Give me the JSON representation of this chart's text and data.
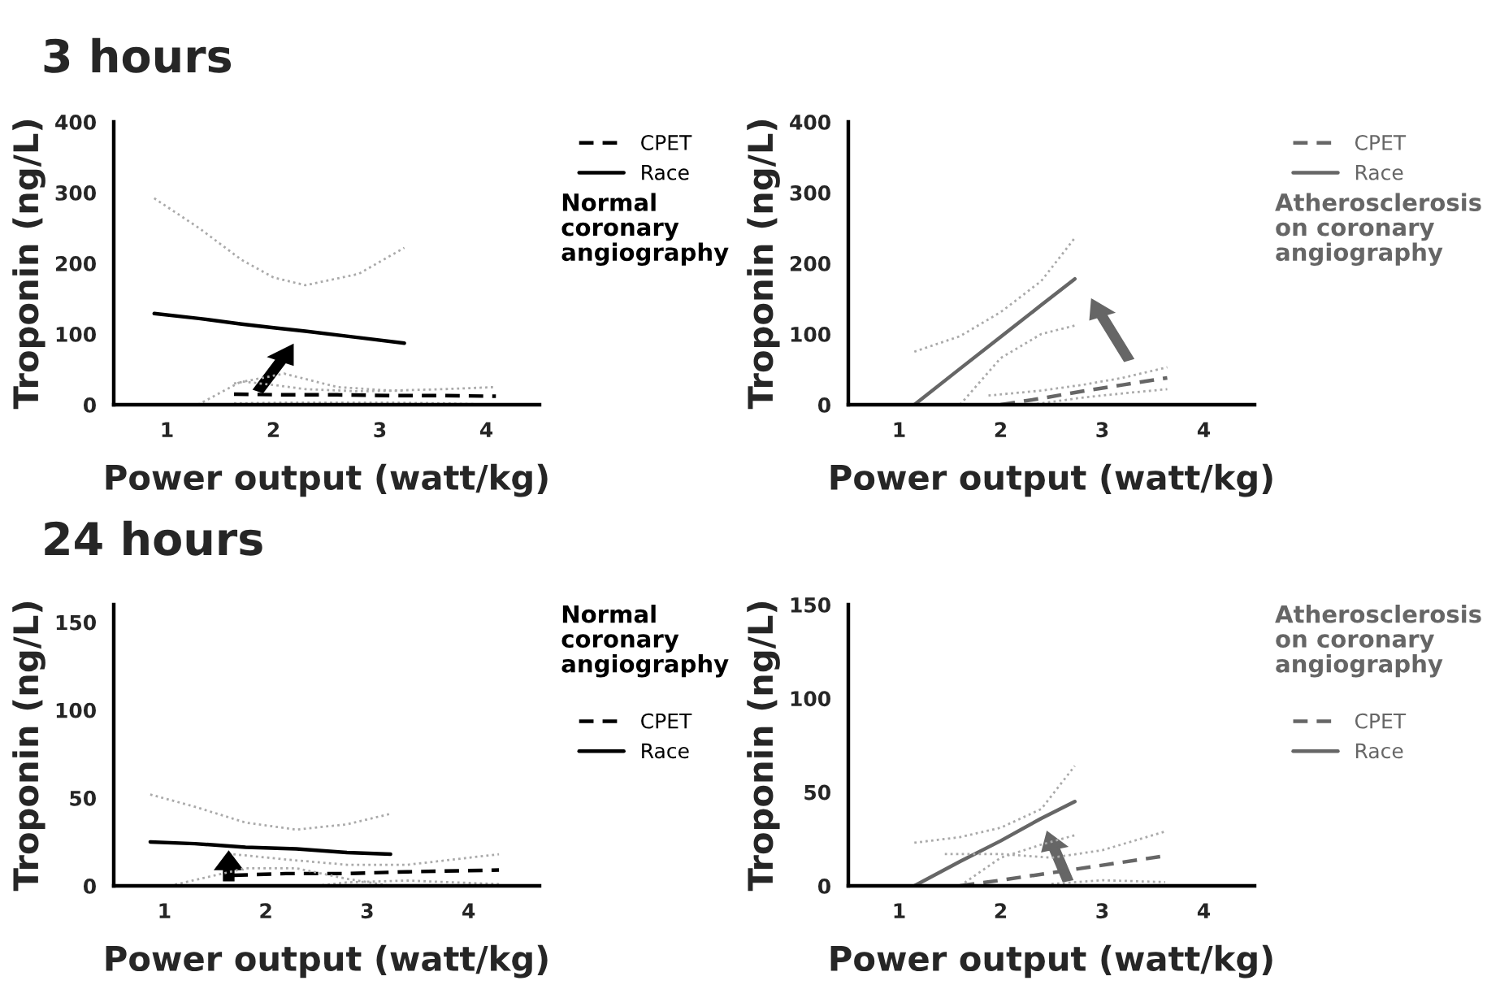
{
  "chart_data": [
    {
      "type": "line",
      "title": "3 hours",
      "xlabel": "Power output (watt/kg)",
      "ylabel": "Troponin (ng/L)",
      "annotations": [
        "Normal\ncoronary\nangiography"
      ],
      "xlim": [
        0.5,
        4.5
      ],
      "xticks": [
        1,
        2,
        3,
        4
      ],
      "ylim": [
        0,
        400
      ],
      "yticks": [
        0,
        100,
        200,
        300,
        400
      ],
      "legend": "top right",
      "series": [
        {
          "name": "CPET",
          "color": "#000000",
          "line_style": "dashed",
          "x": [
            1.63,
            2.1,
            2.6,
            3.1,
            3.6,
            4.09
          ],
          "values": [
            15,
            14,
            14,
            13,
            13,
            12
          ]
        },
        {
          "name": "Race",
          "color": "#000000",
          "line_style": "solid",
          "x": [
            0.88,
            1.3,
            1.7,
            2.0,
            2.3,
            2.8,
            3.23
          ],
          "values": [
            129,
            122,
            114,
            109,
            104,
            95,
            87
          ]
        },
        {
          "color": "#aaaaaa",
          "line_style": "dotted",
          "x": [
            0.88,
            1.3,
            1.7,
            2.0,
            2.3,
            2.8,
            3.23
          ],
          "values": [
            292,
            250,
            205,
            180,
            169,
            185,
            222
          ]
        },
        {
          "color": "#aaaaaa",
          "line_style": "dotted",
          "x": [
            1.29,
            1.7,
            2.0,
            2.3,
            2.8,
            3.23
          ],
          "values": [
            0,
            33,
            28,
            22,
            19,
            20
          ]
        },
        {
          "color": "#aaaaaa",
          "line_style": "dotted",
          "x": [
            1.63,
            2.1,
            2.6,
            3.1,
            3.6,
            4.09
          ],
          "values": [
            30,
            44,
            25,
            20,
            22,
            25
          ]
        },
        {
          "color": "#aaaaaa",
          "line_style": "dotted",
          "x": [
            1.63,
            2.1,
            2.6,
            3.1,
            3.6,
            4.09
          ],
          "values": [
            2,
            3,
            3,
            3,
            2,
            0
          ]
        }
      ]
    },
    {
      "type": "line",
      "xlabel": "Power output (watt/kg)",
      "ylabel": "Troponin (ng/L)",
      "annotations": [
        "Atherosclerosis\non coronary\nangiography"
      ],
      "xlim": [
        0.5,
        4.5
      ],
      "xticks": [
        1,
        2,
        3,
        4
      ],
      "ylim": [
        0,
        400
      ],
      "yticks": [
        0,
        100,
        200,
        300,
        400
      ],
      "legend": "top right",
      "series": [
        {
          "name": "CPET",
          "color": "#666666",
          "line_style": "dashed",
          "x": [
            2.0,
            2.4,
            2.8,
            3.2,
            3.64
          ],
          "values": [
            0,
            9,
            19,
            28,
            38
          ]
        },
        {
          "name": "Race",
          "color": "#666666",
          "line_style": "solid",
          "x": [
            1.15,
            1.6,
            2.0,
            2.4,
            2.73
          ],
          "values": [
            0,
            51,
            96,
            141,
            178
          ]
        },
        {
          "color": "#aaaaaa",
          "line_style": "dotted",
          "x": [
            1.15,
            1.6,
            2.0,
            2.4,
            2.73
          ],
          "values": [
            75,
            97,
            131,
            175,
            236
          ]
        },
        {
          "color": "#aaaaaa",
          "line_style": "dotted",
          "x": [
            1.6,
            2.0,
            2.4,
            2.73
          ],
          "values": [
            0,
            66,
            100,
            112
          ]
        },
        {
          "color": "#aaaaaa",
          "line_style": "dotted",
          "x": [
            1.88,
            2.4,
            2.8,
            3.2,
            3.64
          ],
          "values": [
            13,
            20,
            28,
            38,
            53
          ]
        },
        {
          "color": "#aaaaaa",
          "line_style": "dotted",
          "x": [
            2.3,
            2.8,
            3.2,
            3.64
          ],
          "values": [
            0,
            10,
            16,
            22
          ]
        }
      ]
    },
    {
      "type": "line",
      "title": "24 hours",
      "xlabel": "Power output (watt/kg)",
      "ylabel": "Troponin (ng/L)",
      "annotations": [
        "Normal\ncoronary\nangiography"
      ],
      "xlim": [
        0.5,
        4.7
      ],
      "xticks": [
        1,
        2,
        3,
        4
      ],
      "ylim": [
        0,
        160
      ],
      "yticks": [
        0,
        50,
        100,
        150
      ],
      "legend": "right",
      "series": [
        {
          "name": "CPET",
          "color": "#000000",
          "line_style": "dashed",
          "x": [
            1.68,
            2.2,
            2.8,
            3.4,
            4.3
          ],
          "values": [
            6,
            7,
            7,
            8,
            9
          ]
        },
        {
          "name": "Race",
          "color": "#000000",
          "line_style": "solid",
          "x": [
            0.86,
            1.3,
            1.8,
            2.3,
            2.8,
            3.23
          ],
          "values": [
            25,
            24,
            22,
            21,
            19,
            18
          ]
        },
        {
          "color": "#aaaaaa",
          "line_style": "dotted",
          "x": [
            0.86,
            1.3,
            1.8,
            2.3,
            2.8,
            3.23
          ],
          "values": [
            52,
            45,
            36,
            32,
            35,
            41
          ]
        },
        {
          "color": "#aaaaaa",
          "line_style": "dotted",
          "x": [
            1.05,
            1.8,
            2.3,
            2.8,
            3.23
          ],
          "values": [
            0,
            10,
            10,
            4,
            0
          ]
        },
        {
          "color": "#aaaaaa",
          "line_style": "dotted",
          "x": [
            1.68,
            2.2,
            2.8,
            3.4,
            4.3
          ],
          "values": [
            18,
            15,
            12,
            12,
            18
          ]
        },
        {
          "color": "#aaaaaa",
          "line_style": "dotted",
          "x": [
            2.5,
            2.8,
            3.4,
            4.3
          ],
          "values": [
            0,
            2,
            3,
            1
          ]
        }
      ]
    },
    {
      "type": "line",
      "xlabel": "Power output (watt/kg)",
      "ylabel": "Troponin (ng/L)",
      "annotations": [
        "Atherosclerosis\non coronary\nangiography"
      ],
      "xlim": [
        0.5,
        4.5
      ],
      "xticks": [
        1,
        2,
        3,
        4
      ],
      "ylim": [
        0,
        150
      ],
      "yticks": [
        0,
        50,
        100,
        150
      ],
      "legend": "right",
      "series": [
        {
          "name": "CPET",
          "color": "#666666",
          "line_style": "dashed",
          "x": [
            1.6,
            2.0,
            2.5,
            3.0,
            3.62
          ],
          "values": [
            0,
            3,
            7,
            11,
            16
          ]
        },
        {
          "name": "Race",
          "color": "#666666",
          "line_style": "solid",
          "x": [
            1.15,
            1.6,
            2.0,
            2.4,
            2.73
          ],
          "values": [
            0,
            13,
            24,
            36,
            45
          ]
        },
        {
          "color": "#aaaaaa",
          "line_style": "dotted",
          "x": [
            1.15,
            1.6,
            2.0,
            2.4,
            2.73
          ],
          "values": [
            23,
            26,
            31,
            41,
            64
          ]
        },
        {
          "color": "#aaaaaa",
          "line_style": "dotted",
          "x": [
            1.6,
            2.0,
            2.4,
            2.73
          ],
          "values": [
            0,
            15,
            22,
            27
          ]
        },
        {
          "color": "#aaaaaa",
          "line_style": "dotted",
          "x": [
            1.45,
            2.0,
            2.5,
            3.0,
            3.62
          ],
          "values": [
            17,
            17,
            15,
            19,
            29
          ]
        },
        {
          "color": "#aaaaaa",
          "line_style": "dotted",
          "x": [
            2.5,
            3.0,
            3.62
          ],
          "values": [
            1,
            3,
            2
          ]
        }
      ]
    }
  ]
}
